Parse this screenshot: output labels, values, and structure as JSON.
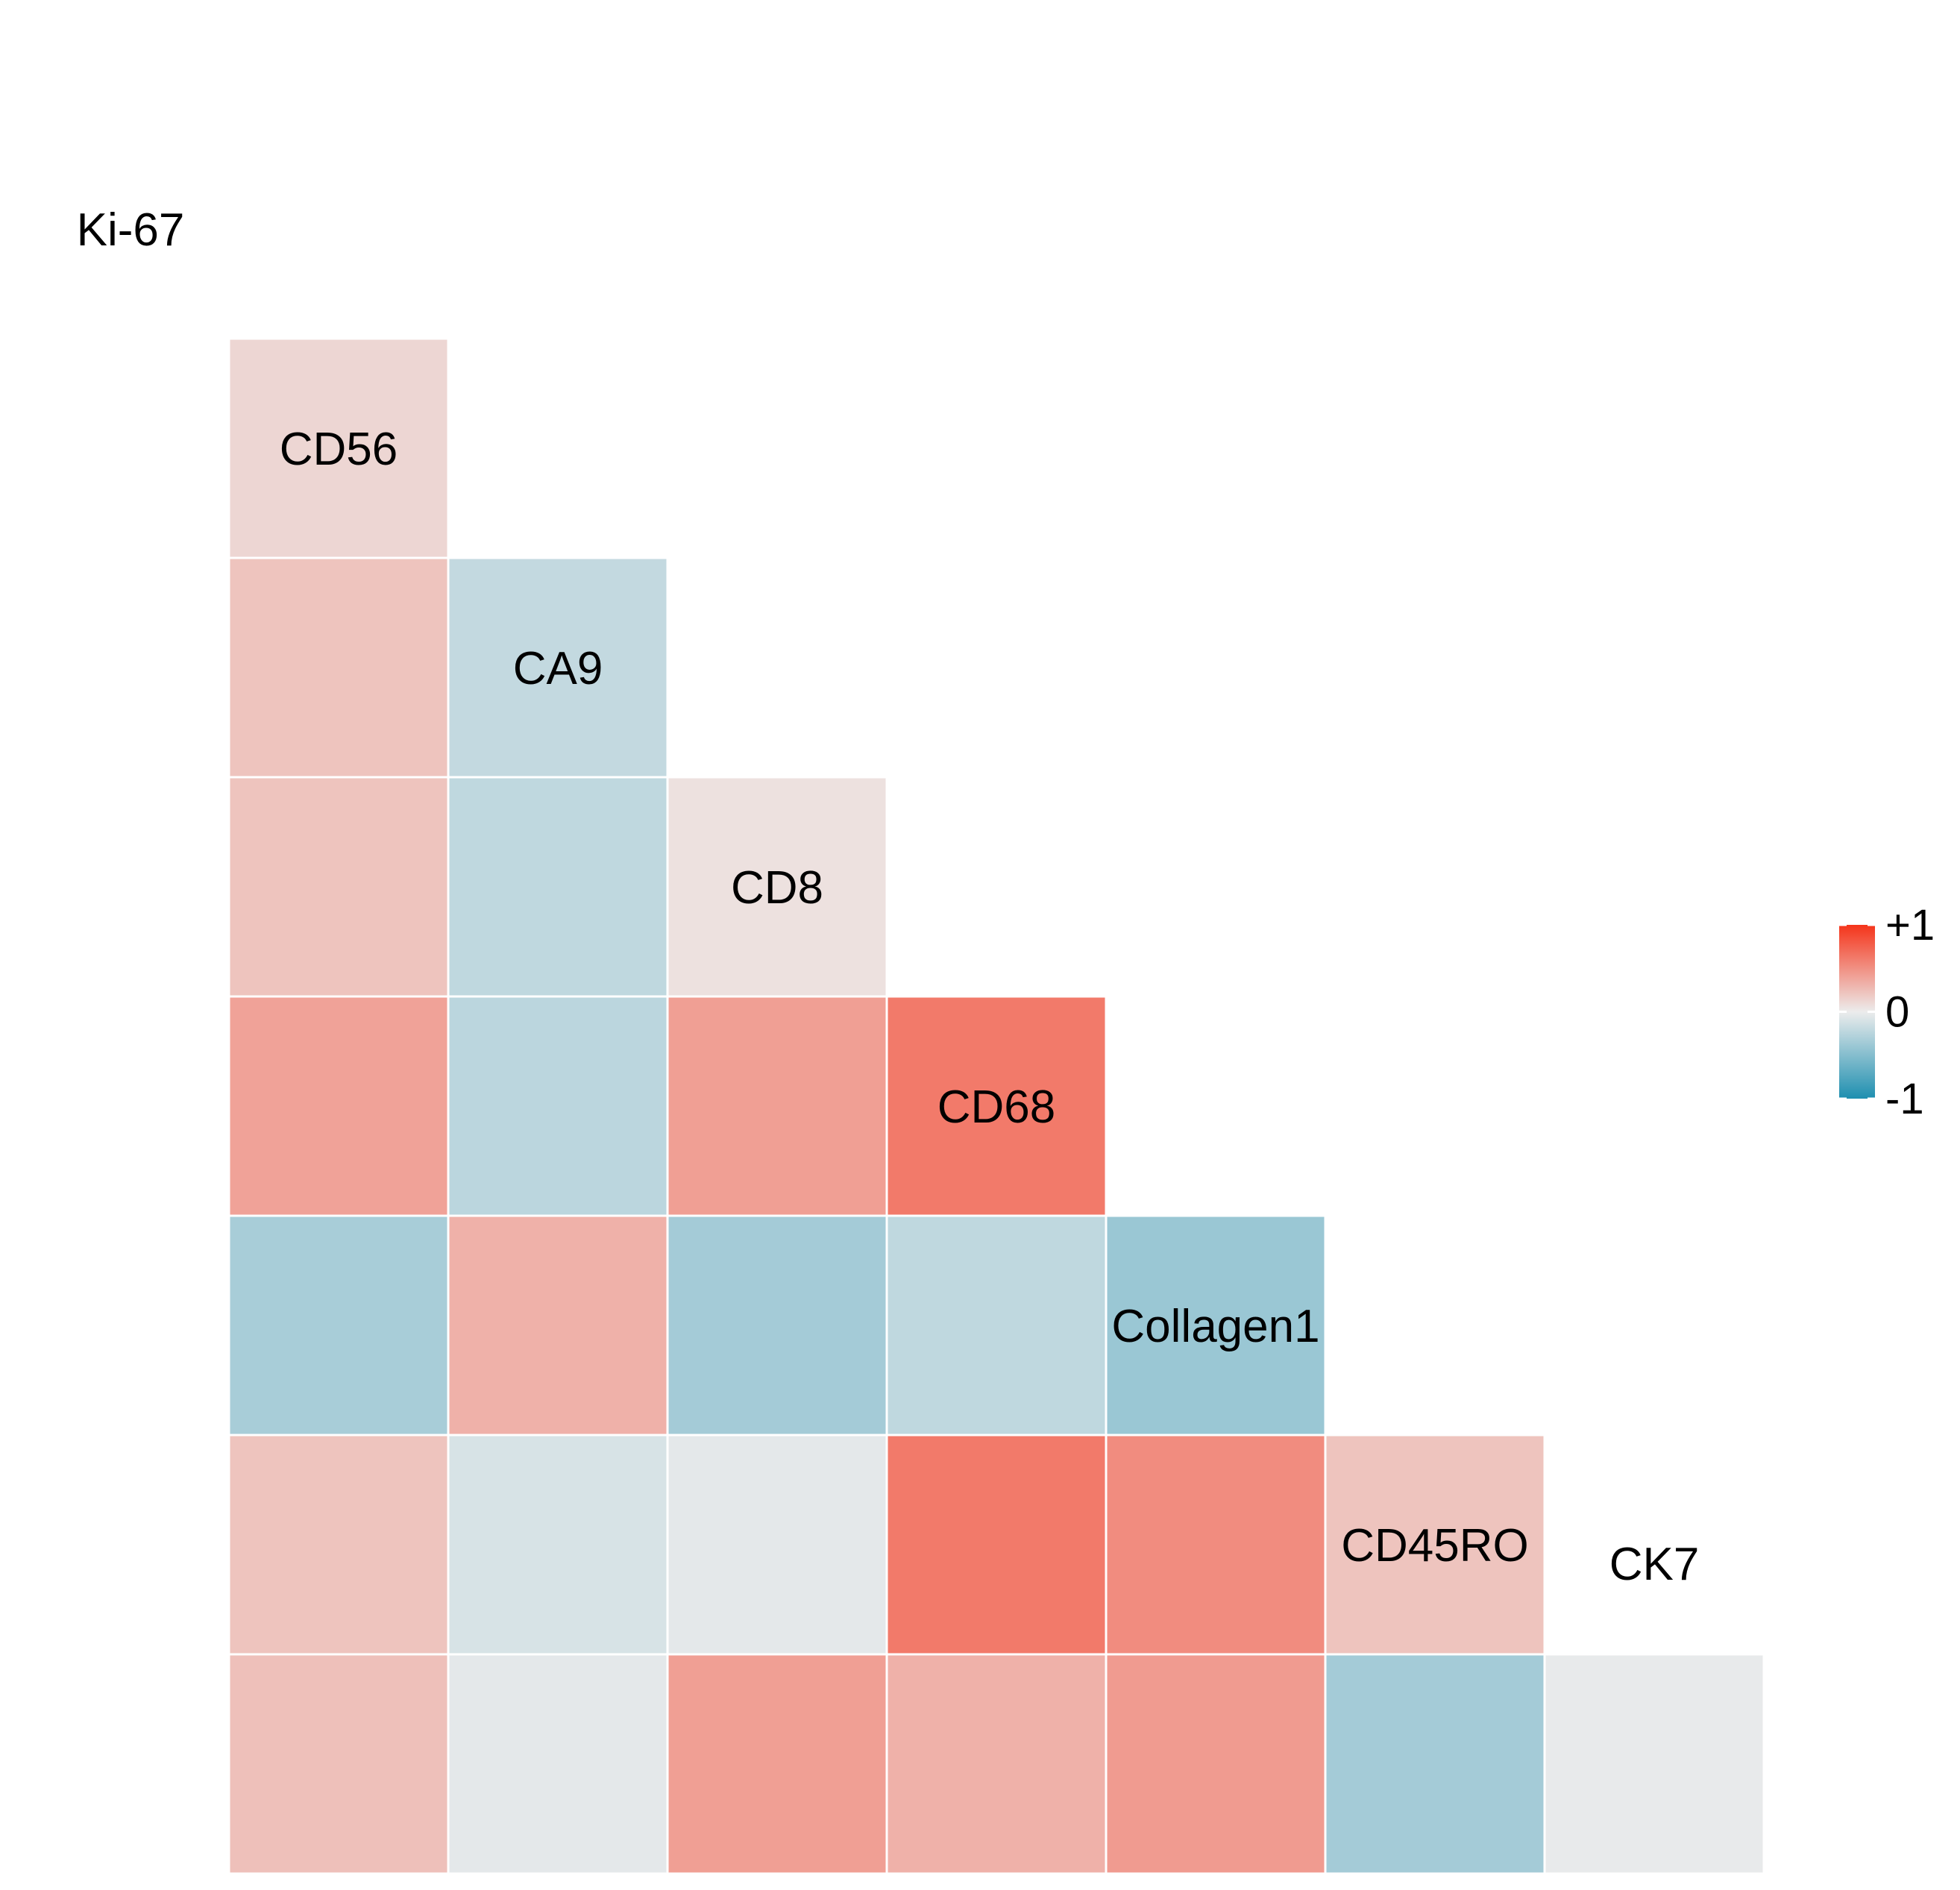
{
  "chart_data": {
    "type": "heatmap",
    "subtype": "correlation-lower-triangle",
    "title": "",
    "xlabel": "",
    "ylabel": "",
    "variables": [
      "Ki-67",
      "CD56",
      "CA9",
      "CD8",
      "CD68",
      "Collagen1",
      "CD45RO",
      "CK7"
    ],
    "matrix": [
      [
        null,
        null,
        null,
        null,
        null,
        null,
        null,
        null
      ],
      [
        0.12,
        null,
        null,
        null,
        null,
        null,
        null,
        null
      ],
      [
        0.22,
        -0.2,
        null,
        null,
        null,
        null,
        null,
        null
      ],
      [
        0.22,
        -0.22,
        0.06,
        null,
        null,
        null,
        null,
        null
      ],
      [
        0.4,
        -0.24,
        0.42,
        0.62,
        null,
        null,
        null,
        null
      ],
      [
        -0.33,
        0.32,
        -0.35,
        -0.22,
        -0.4,
        null,
        null,
        null
      ],
      [
        0.22,
        -0.1,
        -0.04,
        0.62,
        0.52,
        0.22,
        null,
        null
      ],
      [
        0.24,
        -0.04,
        0.42,
        0.32,
        0.44,
        -0.35,
        -0.02,
        null
      ]
    ],
    "zlim": [
      -1,
      1
    ],
    "color_scale": {
      "low": "#1e8fb0",
      "mid": "#ececec",
      "high": "#f5341a"
    },
    "grid": false,
    "legend": {
      "position": "right",
      "labels": [
        {
          "value": 1,
          "text": "+1"
        },
        {
          "value": 0,
          "text": "0"
        },
        {
          "value": -1,
          "text": "-1"
        }
      ]
    }
  }
}
